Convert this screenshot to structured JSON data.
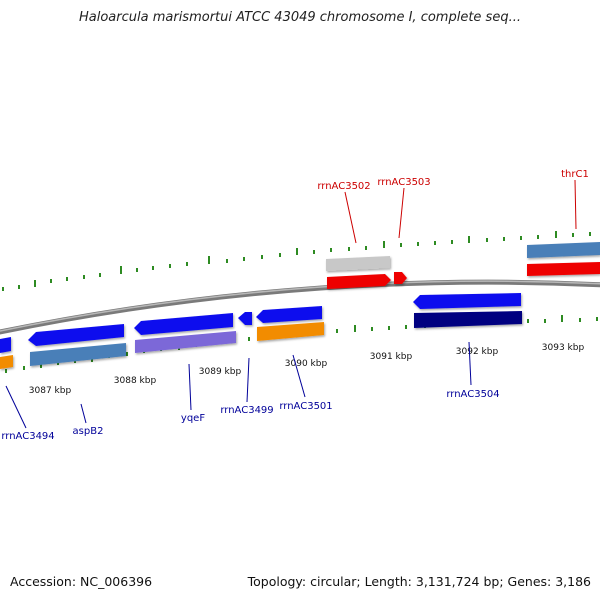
{
  "title": "Haloarcula marismortui ATCC 43049 chromosome I, complete seq...",
  "footer": {
    "accession": "Accession: NC_006396",
    "stats": "Topology: circular; Length: 3,131,724 bp; Genes: 3,186"
  },
  "colors": {
    "backbone": "#808080",
    "tick": "#2e8b22",
    "forward_label": "#cc0000",
    "reverse_label": "#000099"
  },
  "scale_labels": [
    "3087 kbp",
    "3088 kbp",
    "3089 kbp",
    "3090 kbp",
    "3091 kbp",
    "3092 kbp",
    "3093 kbp"
  ],
  "gene_labels": {
    "rrnAC3502": "rrnAC3502",
    "rrnAC3503": "rrnAC3503",
    "thrC1": "thrC1",
    "rrnAC3494": "rrnAC3494",
    "aspB2": "aspB2",
    "yqeF": "yqeF",
    "rrnAC3499": "rrnAC3499",
    "rrnAC3501": "rrnAC3501",
    "rrnAC3504": "rrnAC3504"
  }
}
